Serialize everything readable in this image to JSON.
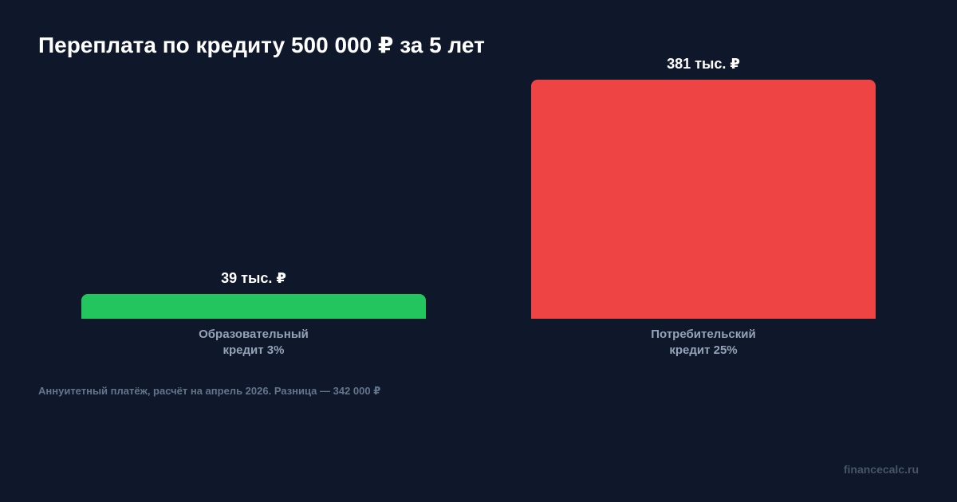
{
  "title": "Переплата по кредиту 500 000 ₽ за 5 лет",
  "footnote": "Аннуитетный платёж, расчёт на апрель 2026. Разница — 342 000 ₽",
  "watermark": "financecalc.ru",
  "chart_data": {
    "type": "bar",
    "title": "Переплата по кредиту 500 000 ₽ за 5 лет",
    "categories": [
      "Образовательный кредит 3%",
      "Потребительский кредит 25%"
    ],
    "category_lines": [
      [
        "Образовательный",
        "кредит 3%"
      ],
      [
        "Потребительский",
        "кредит 25%"
      ]
    ],
    "values": [
      39,
      381
    ],
    "value_labels": [
      "39 тыс. ₽",
      "381 тыс. ₽"
    ],
    "colors": [
      "#22c55e",
      "#ef4444"
    ],
    "unit": "тыс. ₽",
    "ylim": [
      0,
      381
    ],
    "grid": false,
    "legend": "none",
    "xlabel": "",
    "ylabel": ""
  },
  "colors": {
    "background": "#0f172a",
    "text": "#ffffff",
    "category_text": "#94a3b8",
    "footnote_text": "#64748b",
    "watermark_text": "#475569"
  }
}
